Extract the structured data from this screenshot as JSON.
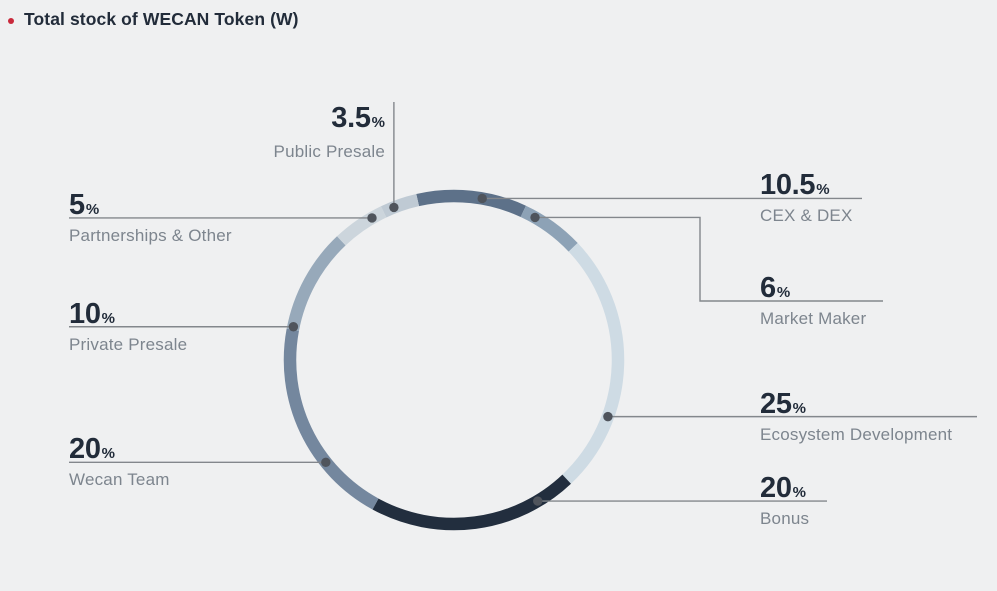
{
  "title": {
    "bullet": "red-dot",
    "text": "Total stock of WECAN Token (W)"
  },
  "chart_data": {
    "type": "pie",
    "subtype": "donut",
    "title": "Total stock of WECAN Token (W)",
    "unit": "%",
    "total": 100,
    "legend_position": "callout-labels",
    "grid": false,
    "slices": [
      {
        "id": "cex-dex",
        "label": "CEX & DEX",
        "value": 10.5,
        "value_text": "10.5",
        "color": "#5d7189"
      },
      {
        "id": "market-maker",
        "label": "Market Maker",
        "value": 6,
        "value_text": "6",
        "color": "#8da2b6"
      },
      {
        "id": "ecosystem",
        "label": "Ecosystem Development",
        "value": 25,
        "value_text": "25",
        "color": "#cedbe4"
      },
      {
        "id": "bonus",
        "label": "Bonus",
        "value": 20,
        "value_text": "20",
        "color": "#222e3e"
      },
      {
        "id": "wecan-team",
        "label": "Wecan Team",
        "value": 20,
        "value_text": "20",
        "color": "#74879e"
      },
      {
        "id": "private-presale",
        "label": "Private Presale",
        "value": 10,
        "value_text": "10",
        "color": "#97a9ba"
      },
      {
        "id": "partnerships",
        "label": "Partnerships & Other",
        "value": 5,
        "value_text": "5",
        "color": "#ccd5dc"
      },
      {
        "id": "public-presale",
        "label": "Public Presale",
        "value": 3.5,
        "value_text": "3.5",
        "color": "#bfcad4"
      }
    ],
    "colors": {
      "background": "#eff0f1",
      "number_text": "#222c3a",
      "label_text": "#7d858e",
      "leader_line": "#83878c",
      "dot": "#4f545c",
      "title_bullet": "#c9293b"
    }
  }
}
